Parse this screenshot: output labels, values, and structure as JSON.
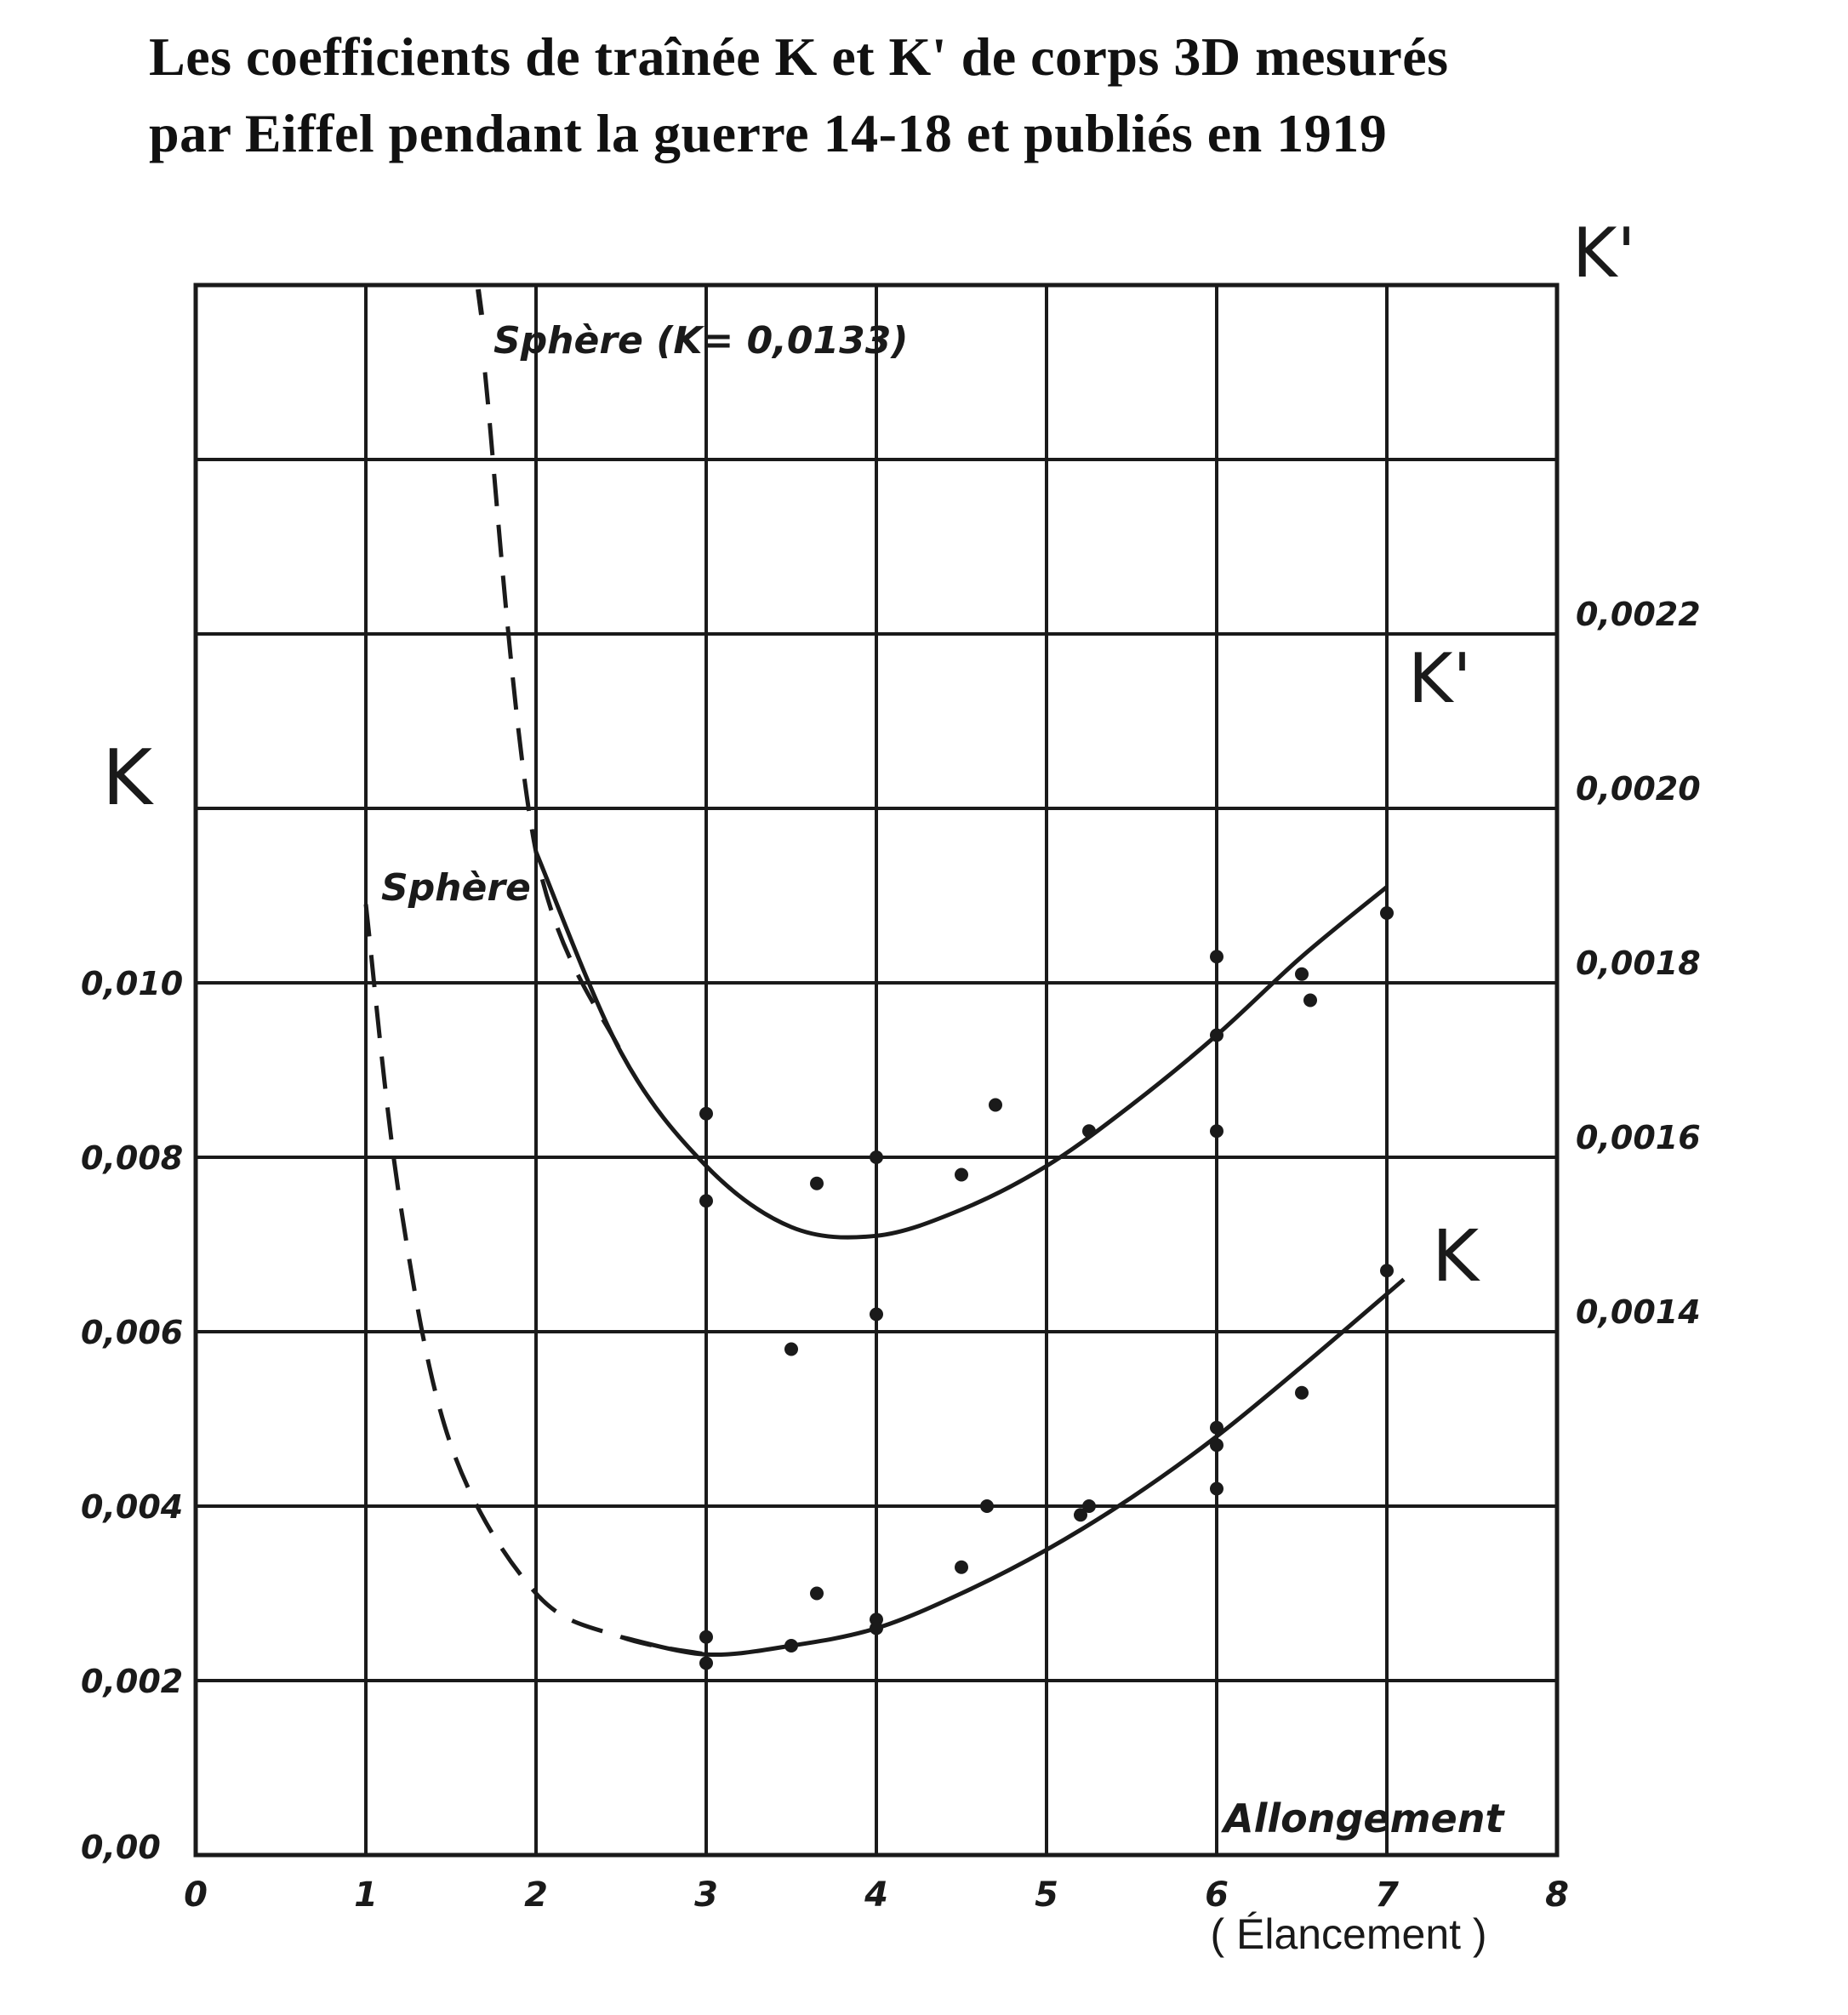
{
  "title_lines": [
    "Les coefficients de traînée K et K' de corps 3D mesurés",
    "par Eiffel pendant la guerre 14-18 et publiés en 1919"
  ],
  "chart_data": {
    "type": "scatter",
    "title": "Les coefficients de traînée K et K' de corps 3D mesurés par Eiffel pendant la guerre 14-18 et publiés en 1919",
    "xlabel": "Allongement",
    "xlabel_secondary": "( Élancement )",
    "ylabel_left": "K",
    "ylabel_right": "K'",
    "xlim": [
      0,
      8
    ],
    "ylim_left": [
      0,
      0.018
    ],
    "ylim_right": [
      0.0008,
      0.0026
    ],
    "x_ticks": [
      "0",
      "1",
      "2",
      "3",
      "4",
      "5",
      "6",
      "7",
      "8"
    ],
    "y_ticks_left": [
      "0,00",
      "0,002",
      "0,004",
      "0,006",
      "0,008",
      "0,010"
    ],
    "y_ticks_right": [
      "0,0014",
      "0,0016",
      "0,0018",
      "0,0020",
      "0,0022"
    ],
    "grid": true,
    "series": [
      {
        "name": "K",
        "axis": "left",
        "points": [
          [
            3.0,
            0.0025
          ],
          [
            3.0,
            0.0022
          ],
          [
            3.5,
            0.0024
          ],
          [
            3.65,
            0.003
          ],
          [
            4.0,
            0.0027
          ],
          [
            4.0,
            0.0026
          ],
          [
            4.5,
            0.0033
          ],
          [
            4.65,
            0.004
          ],
          [
            5.2,
            0.0039
          ],
          [
            5.25,
            0.004
          ],
          [
            6.0,
            0.0042
          ],
          [
            6.0,
            0.0047
          ],
          [
            6.0,
            0.0049
          ],
          [
            6.5,
            0.0053
          ],
          [
            7.0,
            0.0067
          ]
        ],
        "curve": [
          [
            1.0,
            0.0109
          ],
          [
            1.2,
            0.0075
          ],
          [
            1.5,
            0.0047
          ],
          [
            2.0,
            0.003
          ],
          [
            2.5,
            0.0025
          ],
          [
            3.0,
            0.0023
          ],
          [
            3.5,
            0.0024
          ],
          [
            4.0,
            0.0026
          ],
          [
            4.5,
            0.003
          ],
          [
            5.0,
            0.0035
          ],
          [
            5.5,
            0.0041
          ],
          [
            6.0,
            0.0048
          ],
          [
            6.5,
            0.0056
          ],
          [
            7.1,
            0.0066
          ]
        ],
        "dashed_until_x": 2.6
      },
      {
        "name": "K'",
        "axis": "right",
        "points": [
          [
            3.0,
            0.00165
          ],
          [
            3.0,
            0.00155
          ],
          [
            3.5,
            0.00138
          ],
          [
            3.65,
            0.00157
          ],
          [
            4.0,
            0.0016
          ],
          [
            4.0,
            0.00142
          ],
          [
            4.5,
            0.00158
          ],
          [
            4.7,
            0.00166
          ],
          [
            5.25,
            0.00163
          ],
          [
            6.0,
            0.00183
          ],
          [
            6.0,
            0.00174
          ],
          [
            6.0,
            0.00163
          ],
          [
            6.5,
            0.00181
          ],
          [
            6.55,
            0.00178
          ],
          [
            7.0,
            0.00188
          ]
        ],
        "curve": [
          [
            1.7,
            0.0025
          ],
          [
            2.0,
            0.00195
          ],
          [
            2.5,
            0.00172
          ],
          [
            3.0,
            0.00159
          ],
          [
            3.5,
            0.00152
          ],
          [
            4.0,
            0.00151
          ],
          [
            4.5,
            0.00154
          ],
          [
            5.0,
            0.00159
          ],
          [
            5.5,
            0.00166
          ],
          [
            6.0,
            0.00174
          ],
          [
            6.5,
            0.00183
          ],
          [
            7.0,
            0.00191
          ]
        ],
        "dashed_until_x": 2.45
      }
    ],
    "annotations": [
      {
        "text": "Sphère (K= 0,0133)",
        "x": 1.7,
        "axis": "left",
        "y": 0.0165
      },
      {
        "text": "Sphère",
        "x": 1.0,
        "axis": "left",
        "y": 0.0109
      },
      {
        "text": "K'",
        "x": 7.15,
        "axis": "right",
        "y": 0.00195
      },
      {
        "text": "K",
        "x": 7.4,
        "axis": "left",
        "y": 0.0068
      }
    ]
  }
}
